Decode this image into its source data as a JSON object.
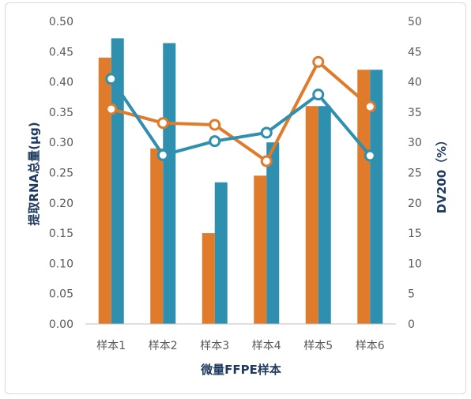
{
  "chart_data": {
    "type": "bar",
    "categories": [
      "样本1",
      "样本2",
      "样本3",
      "样本4",
      "样本5",
      "样本6"
    ],
    "xlabel": "微量FFPE样本",
    "ylabel": "提取RNA总量(μg)",
    "y2label": "DV200（%）",
    "ylim": [
      0,
      0.5
    ],
    "y2lim": [
      0,
      50
    ],
    "yticks": [
      "0.00",
      "0.05",
      "0.10",
      "0.15",
      "0.20",
      "0.25",
      "0.30",
      "0.35",
      "0.40",
      "0.45",
      "0.50"
    ],
    "y2ticks": [
      "0",
      "5",
      "10",
      "15",
      "20",
      "25",
      "30",
      "35",
      "40",
      "45",
      "50"
    ],
    "bar_series": [
      {
        "values": [
          0.44,
          0.29,
          0.15,
          0.245,
          0.36,
          0.42
        ],
        "axis": "left",
        "color": "#e07b2c"
      },
      {
        "values": [
          47.2,
          46.4,
          23.4,
          30.0,
          36.0,
          42.0
        ],
        "axis": "right",
        "color": "#2e8fae"
      }
    ],
    "line_series": [
      {
        "values": [
          35.5,
          33.2,
          32.9,
          26.9,
          43.3,
          35.9
        ],
        "axis": "right",
        "color": "#e07b2c"
      },
      {
        "values": [
          40.5,
          27.9,
          30.2,
          31.6,
          37.9,
          27.8
        ],
        "axis": "right",
        "color": "#2e8fae"
      }
    ],
    "grid": false,
    "legend": "none"
  }
}
